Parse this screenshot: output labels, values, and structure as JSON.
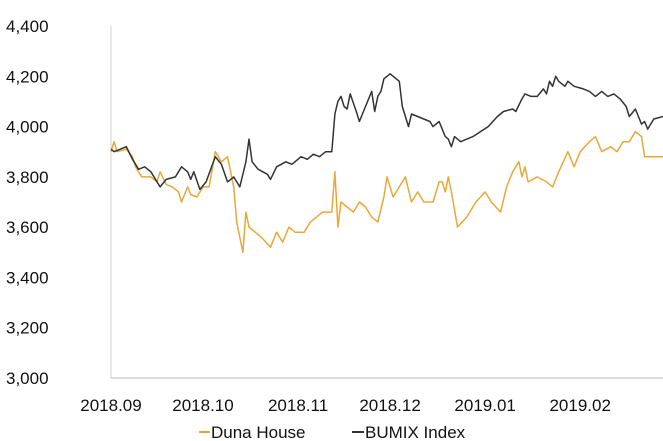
{
  "chart_data": {
    "type": "line",
    "title": "",
    "xlabel": "",
    "ylabel": "",
    "ylim": [
      3000,
      4400
    ],
    "y_ticks": [
      3000,
      3200,
      3400,
      3600,
      3800,
      4000,
      4200,
      4400
    ],
    "y_tick_labels": [
      "3,000",
      "3,200",
      "3,400",
      "3,600",
      "3,800",
      "4,000",
      "4,200",
      "4,400"
    ],
    "x_tick_labels": [
      "2018.09",
      "2018.10",
      "2018.11",
      "2018.12",
      "2019.01",
      "2019.02"
    ],
    "xlim": [
      "2018-09-01",
      "2019-02-28"
    ],
    "x_ticks": [
      "2018-09-01",
      "2018-10-01",
      "2018-11-01",
      "2018-12-01",
      "2019-01-01",
      "2019-02-01"
    ],
    "grid": false,
    "legend_position": "bottom",
    "series": [
      {
        "name": "Duna House",
        "color": "#e8a838",
        "points": [
          [
            "2018-09-01",
            3900
          ],
          [
            "2018-09-02",
            3940
          ],
          [
            "2018-09-03",
            3900
          ],
          [
            "2018-09-06",
            3910
          ],
          [
            "2018-09-08",
            3880
          ],
          [
            "2018-09-09",
            3840
          ],
          [
            "2018-09-11",
            3800
          ],
          [
            "2018-09-14",
            3800
          ],
          [
            "2018-09-16",
            3780
          ],
          [
            "2018-09-17",
            3820
          ],
          [
            "2018-09-19",
            3770
          ],
          [
            "2018-09-21",
            3760
          ],
          [
            "2018-09-23",
            3740
          ],
          [
            "2018-09-24",
            3700
          ],
          [
            "2018-09-26",
            3760
          ],
          [
            "2018-09-27",
            3730
          ],
          [
            "2018-09-29",
            3720
          ],
          [
            "2018-10-01",
            3760
          ],
          [
            "2018-10-03",
            3760
          ],
          [
            "2018-10-05",
            3900
          ],
          [
            "2018-10-07",
            3860
          ],
          [
            "2018-10-09",
            3880
          ],
          [
            "2018-10-11",
            3760
          ],
          [
            "2018-10-12",
            3620
          ],
          [
            "2018-10-14",
            3500
          ],
          [
            "2018-10-15",
            3660
          ],
          [
            "2018-10-16",
            3600
          ],
          [
            "2018-10-18",
            3580
          ],
          [
            "2018-10-20",
            3560
          ],
          [
            "2018-10-23",
            3520
          ],
          [
            "2018-10-25",
            3580
          ],
          [
            "2018-10-27",
            3540
          ],
          [
            "2018-10-29",
            3600
          ],
          [
            "2018-10-31",
            3580
          ],
          [
            "2018-11-03",
            3580
          ],
          [
            "2018-11-05",
            3620
          ],
          [
            "2018-11-07",
            3640
          ],
          [
            "2018-11-09",
            3660
          ],
          [
            "2018-11-12",
            3660
          ],
          [
            "2018-11-13",
            3820
          ],
          [
            "2018-11-14",
            3600
          ],
          [
            "2018-11-15",
            3700
          ],
          [
            "2018-11-17",
            3680
          ],
          [
            "2018-11-19",
            3660
          ],
          [
            "2018-11-21",
            3700
          ],
          [
            "2018-11-23",
            3680
          ],
          [
            "2018-11-25",
            3640
          ],
          [
            "2018-11-27",
            3620
          ],
          [
            "2018-11-29",
            3720
          ],
          [
            "2018-11-30",
            3800
          ],
          [
            "2018-12-02",
            3720
          ],
          [
            "2018-12-04",
            3760
          ],
          [
            "2018-12-06",
            3800
          ],
          [
            "2018-12-08",
            3700
          ],
          [
            "2018-12-10",
            3740
          ],
          [
            "2018-12-12",
            3700
          ],
          [
            "2018-12-15",
            3700
          ],
          [
            "2018-12-17",
            3780
          ],
          [
            "2018-12-18",
            3780
          ],
          [
            "2018-12-19",
            3740
          ],
          [
            "2018-12-20",
            3800
          ],
          [
            "2018-12-21",
            3740
          ],
          [
            "2018-12-23",
            3600
          ],
          [
            "2018-12-26",
            3640
          ],
          [
            "2018-12-29",
            3700
          ],
          [
            "2019-01-01",
            3740
          ],
          [
            "2019-01-03",
            3700
          ],
          [
            "2019-01-06",
            3660
          ],
          [
            "2019-01-08",
            3760
          ],
          [
            "2019-01-10",
            3820
          ],
          [
            "2019-01-12",
            3860
          ],
          [
            "2019-01-13",
            3800
          ],
          [
            "2019-01-14",
            3840
          ],
          [
            "2019-01-15",
            3780
          ],
          [
            "2019-01-18",
            3800
          ],
          [
            "2019-01-21",
            3780
          ],
          [
            "2019-01-23",
            3760
          ],
          [
            "2019-01-25",
            3820
          ],
          [
            "2019-01-28",
            3900
          ],
          [
            "2019-01-30",
            3840
          ],
          [
            "2019-02-01",
            3900
          ],
          [
            "2019-02-04",
            3940
          ],
          [
            "2019-02-06",
            3960
          ],
          [
            "2019-02-08",
            3900
          ],
          [
            "2019-02-11",
            3920
          ],
          [
            "2019-02-13",
            3900
          ],
          [
            "2019-02-15",
            3940
          ],
          [
            "2019-02-17",
            3940
          ],
          [
            "2019-02-19",
            3980
          ],
          [
            "2019-02-21",
            3960
          ],
          [
            "2019-02-22",
            3880
          ],
          [
            "2019-02-28",
            3880
          ]
        ]
      },
      {
        "name": "BUMIX Index",
        "color": "#333333",
        "points": [
          [
            "2018-09-01",
            3910
          ],
          [
            "2018-09-02",
            3900
          ],
          [
            "2018-09-04",
            3910
          ],
          [
            "2018-09-06",
            3920
          ],
          [
            "2018-09-08",
            3870
          ],
          [
            "2018-09-10",
            3830
          ],
          [
            "2018-09-12",
            3840
          ],
          [
            "2018-09-14",
            3820
          ],
          [
            "2018-09-16",
            3780
          ],
          [
            "2018-09-17",
            3760
          ],
          [
            "2018-09-19",
            3790
          ],
          [
            "2018-09-22",
            3800
          ],
          [
            "2018-09-24",
            3840
          ],
          [
            "2018-09-26",
            3820
          ],
          [
            "2018-09-27",
            3790
          ],
          [
            "2018-09-28",
            3820
          ],
          [
            "2018-09-30",
            3750
          ],
          [
            "2018-10-02",
            3780
          ],
          [
            "2018-10-05",
            3880
          ],
          [
            "2018-10-07",
            3850
          ],
          [
            "2018-10-09",
            3780
          ],
          [
            "2018-10-11",
            3800
          ],
          [
            "2018-10-13",
            3760
          ],
          [
            "2018-10-15",
            3860
          ],
          [
            "2018-10-16",
            3950
          ],
          [
            "2018-10-17",
            3860
          ],
          [
            "2018-10-19",
            3830
          ],
          [
            "2018-10-22",
            3810
          ],
          [
            "2018-10-23",
            3790
          ],
          [
            "2018-10-25",
            3840
          ],
          [
            "2018-10-28",
            3860
          ],
          [
            "2018-10-30",
            3850
          ],
          [
            "2018-11-02",
            3880
          ],
          [
            "2018-11-04",
            3870
          ],
          [
            "2018-11-06",
            3890
          ],
          [
            "2018-11-08",
            3880
          ],
          [
            "2018-11-10",
            3900
          ],
          [
            "2018-11-12",
            3900
          ],
          [
            "2018-11-13",
            4050
          ],
          [
            "2018-11-14",
            4100
          ],
          [
            "2018-11-15",
            4120
          ],
          [
            "2018-11-16",
            4080
          ],
          [
            "2018-11-17",
            4070
          ],
          [
            "2018-11-18",
            4130
          ],
          [
            "2018-11-20",
            4060
          ],
          [
            "2018-11-21",
            4020
          ],
          [
            "2018-11-23",
            4080
          ],
          [
            "2018-11-25",
            4140
          ],
          [
            "2018-11-26",
            4060
          ],
          [
            "2018-11-27",
            4120
          ],
          [
            "2018-11-28",
            4140
          ],
          [
            "2018-11-29",
            4190
          ],
          [
            "2018-12-01",
            4210
          ],
          [
            "2018-12-04",
            4180
          ],
          [
            "2018-12-05",
            4080
          ],
          [
            "2018-12-07",
            4000
          ],
          [
            "2018-12-08",
            4050
          ],
          [
            "2018-12-10",
            4040
          ],
          [
            "2018-12-12",
            4030
          ],
          [
            "2018-12-14",
            4020
          ],
          [
            "2018-12-15",
            4000
          ],
          [
            "2018-12-17",
            4020
          ],
          [
            "2018-12-19",
            3960
          ],
          [
            "2018-12-20",
            3950
          ],
          [
            "2018-12-21",
            3920
          ],
          [
            "2018-12-22",
            3960
          ],
          [
            "2018-12-24",
            3940
          ],
          [
            "2018-12-28",
            3960
          ],
          [
            "2019-01-02",
            4000
          ],
          [
            "2019-01-05",
            4040
          ],
          [
            "2019-01-07",
            4060
          ],
          [
            "2019-01-10",
            4070
          ],
          [
            "2019-01-11",
            4060
          ],
          [
            "2019-01-13",
            4110
          ],
          [
            "2019-01-14",
            4130
          ],
          [
            "2019-01-16",
            4120
          ],
          [
            "2019-01-18",
            4120
          ],
          [
            "2019-01-20",
            4150
          ],
          [
            "2019-01-21",
            4130
          ],
          [
            "2019-01-22",
            4180
          ],
          [
            "2019-01-23",
            4160
          ],
          [
            "2019-01-24",
            4200
          ],
          [
            "2019-01-25",
            4180
          ],
          [
            "2019-01-27",
            4160
          ],
          [
            "2019-01-28",
            4180
          ],
          [
            "2019-01-30",
            4160
          ],
          [
            "2019-02-02",
            4150
          ],
          [
            "2019-02-04",
            4140
          ],
          [
            "2019-02-06",
            4120
          ],
          [
            "2019-02-08",
            4140
          ],
          [
            "2019-02-10",
            4120
          ],
          [
            "2019-02-12",
            4130
          ],
          [
            "2019-02-14",
            4110
          ],
          [
            "2019-02-16",
            4080
          ],
          [
            "2019-02-17",
            4040
          ],
          [
            "2019-02-19",
            4070
          ],
          [
            "2019-02-21",
            4010
          ],
          [
            "2019-02-22",
            4020
          ],
          [
            "2019-02-23",
            3990
          ],
          [
            "2019-02-25",
            4030
          ],
          [
            "2019-02-28",
            4040
          ]
        ]
      }
    ]
  }
}
